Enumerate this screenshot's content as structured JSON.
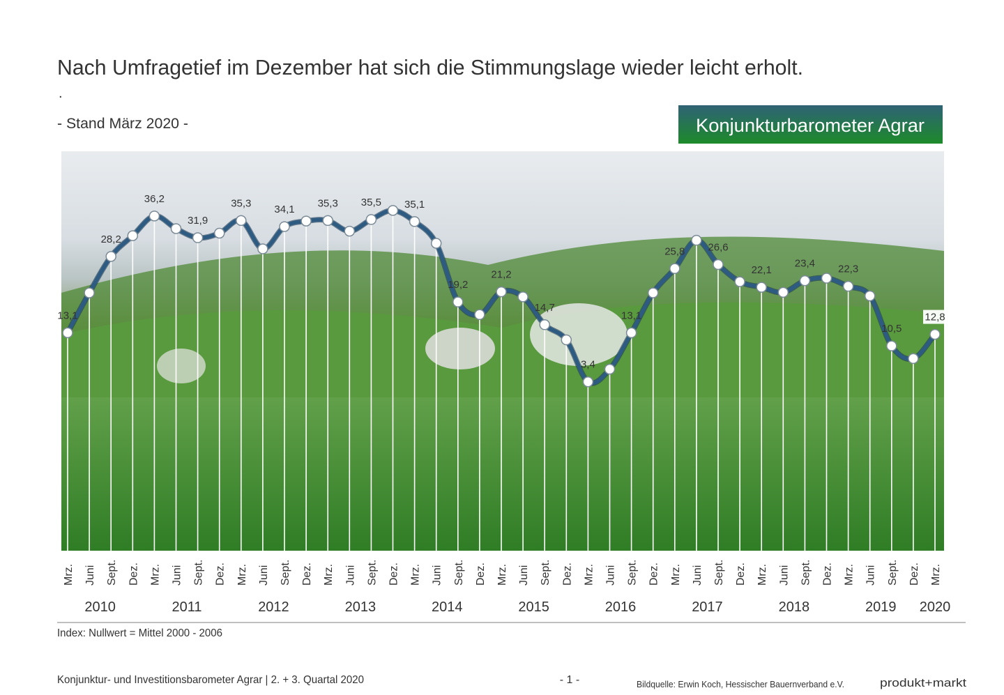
{
  "chart_data": {
    "type": "line",
    "title": "Nach Umfragetief im Dezember hat sich die Stimmungslage wieder leicht erholt.",
    "annotation": ".",
    "subtitle": "- Stand März 2020 -",
    "badge": "Konjunkturbarometer Agrar",
    "note": "Index: Nullwert = Mittel 2000 - 2006",
    "categories": [
      "Mrz.",
      "Juni",
      "Sept.",
      "Dez.",
      "Mrz.",
      "Juni",
      "Sept.",
      "Dez.",
      "Mrz.",
      "Juni",
      "Sept.",
      "Dez.",
      "Mrz.",
      "Juni",
      "Sept.",
      "Dez.",
      "Mrz.",
      "Juni",
      "Sept.",
      "Dez.",
      "Mrz.",
      "Juni",
      "Sept.",
      "Dez.",
      "Mrz.",
      "Juni",
      "Sept.",
      "Dez.",
      "Mrz.",
      "Juni",
      "Sept.",
      "Dez.",
      "Mrz.",
      "Juni",
      "Sept.",
      "Dez.",
      "Mrz.",
      "Juni",
      "Sept.",
      "Dez.",
      "Mrz."
    ],
    "years": [
      "2010",
      "2011",
      "2012",
      "2013",
      "2014",
      "2015",
      "2016",
      "2017",
      "2018",
      "2019",
      "2020"
    ],
    "values": [
      13.1,
      21.0,
      28.2,
      32.3,
      36.2,
      33.7,
      31.9,
      32.8,
      35.3,
      29.7,
      34.1,
      35.2,
      35.3,
      33.2,
      35.5,
      37.3,
      35.1,
      30.8,
      19.2,
      16.7,
      21.2,
      20.2,
      14.7,
      11.7,
      3.4,
      5.9,
      13.1,
      21.0,
      25.8,
      31.4,
      26.6,
      23.2,
      22.1,
      21.1,
      23.4,
      23.9,
      22.3,
      20.4,
      10.5,
      8.0,
      12.8
    ],
    "value_labels": [
      "13,1",
      null,
      "28,2",
      null,
      "36,2",
      null,
      "31,9",
      null,
      "35,3",
      null,
      "34,1",
      null,
      "35,3",
      null,
      "35,5",
      null,
      "35,1",
      null,
      "19,2",
      null,
      "21,2",
      null,
      "14,7",
      null,
      "3,4",
      null,
      "13,1",
      null,
      "25,8",
      null,
      "26,6",
      null,
      "22,1",
      null,
      "23,4",
      null,
      "22,3",
      null,
      "10,5",
      null,
      "12,8"
    ],
    "color": "#2e5b82",
    "ylim": [
      -30,
      49
    ]
  },
  "footer": {
    "left": "Konjunktur- und Investitionsbarometer Agrar | 2. + 3. Quartal 2020",
    "page": "- 1 -",
    "source": "Bildquelle: Erwin Koch, Hessischer Bauernverband e.V.",
    "brand": "produkt+markt"
  }
}
